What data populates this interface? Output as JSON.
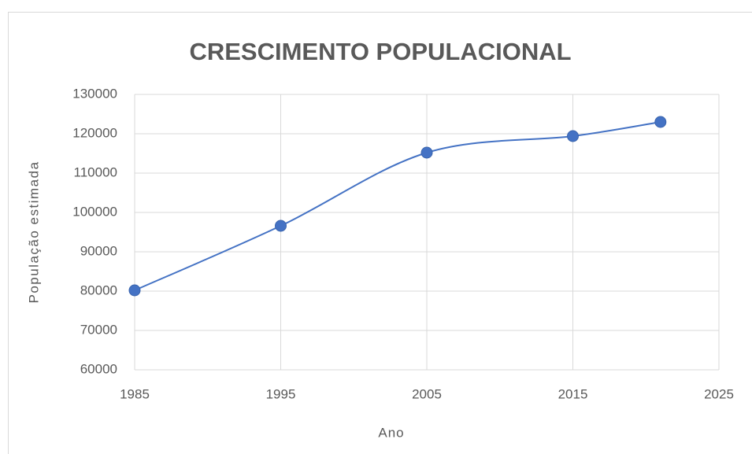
{
  "chart_data": {
    "type": "scatter",
    "title": "CRESCIMENTO POPULACIONAL",
    "x_label": "Ano",
    "y_label": "População estimada",
    "x": [
      1985,
      1995,
      2005,
      2015,
      2021
    ],
    "series": [
      {
        "name": "População estimada",
        "color": "#4472c4",
        "values": [
          80200,
          96600,
          115200,
          119400,
          123000
        ]
      }
    ],
    "xlim": [
      1985,
      2025
    ],
    "xticks": [
      1985,
      1995,
      2005,
      2015,
      2025
    ],
    "ylim": [
      60000,
      130000
    ],
    "yticks": [
      60000,
      70000,
      80000,
      90000,
      100000,
      110000,
      120000,
      130000
    ],
    "grid": true,
    "smooth": true,
    "markers": true
  }
}
